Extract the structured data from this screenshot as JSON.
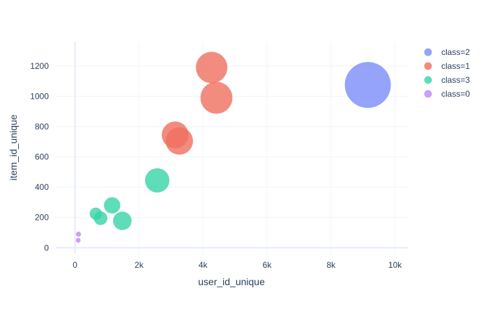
{
  "chart_data": {
    "type": "scatter",
    "title": "",
    "xlabel": "user_id_unique",
    "ylabel": "item_id_unique",
    "xlim": [
      -600,
      10400
    ],
    "ylim": [
      -40,
      1360
    ],
    "x_ticks": [
      0,
      2000,
      4000,
      6000,
      8000,
      10000
    ],
    "x_tick_labels": [
      "0",
      "2k",
      "4k",
      "6k",
      "8k",
      "10k"
    ],
    "y_ticks": [
      0,
      200,
      400,
      600,
      800,
      1000,
      1200
    ],
    "y_tick_labels": [
      "0",
      "200",
      "400",
      "600",
      "800",
      "1000",
      "1200"
    ],
    "grid": true,
    "legend_position": "right",
    "series": [
      {
        "name": "class=2",
        "color": "#7b8cf7",
        "points": [
          {
            "x": 9150,
            "y": 1075,
            "size": 9150
          }
        ]
      },
      {
        "name": "class=1",
        "color": "#ef6f5f",
        "points": [
          {
            "x": 4270,
            "y": 1190,
            "size": 4270
          },
          {
            "x": 4420,
            "y": 990,
            "size": 4420
          },
          {
            "x": 3130,
            "y": 745,
            "size": 3130
          },
          {
            "x": 3260,
            "y": 705,
            "size": 3260
          }
        ]
      },
      {
        "name": "class=3",
        "color": "#37d3a6",
        "points": [
          {
            "x": 2570,
            "y": 445,
            "size": 2570
          },
          {
            "x": 1160,
            "y": 280,
            "size": 1160
          },
          {
            "x": 1480,
            "y": 178,
            "size": 1480
          },
          {
            "x": 650,
            "y": 225,
            "size": 650
          },
          {
            "x": 800,
            "y": 195,
            "size": 800
          }
        ]
      },
      {
        "name": "class=0",
        "color": "#c084fc",
        "points": [
          {
            "x": 110,
            "y": 90,
            "size": 110
          },
          {
            "x": 100,
            "y": 50,
            "size": 100
          }
        ]
      }
    ]
  }
}
